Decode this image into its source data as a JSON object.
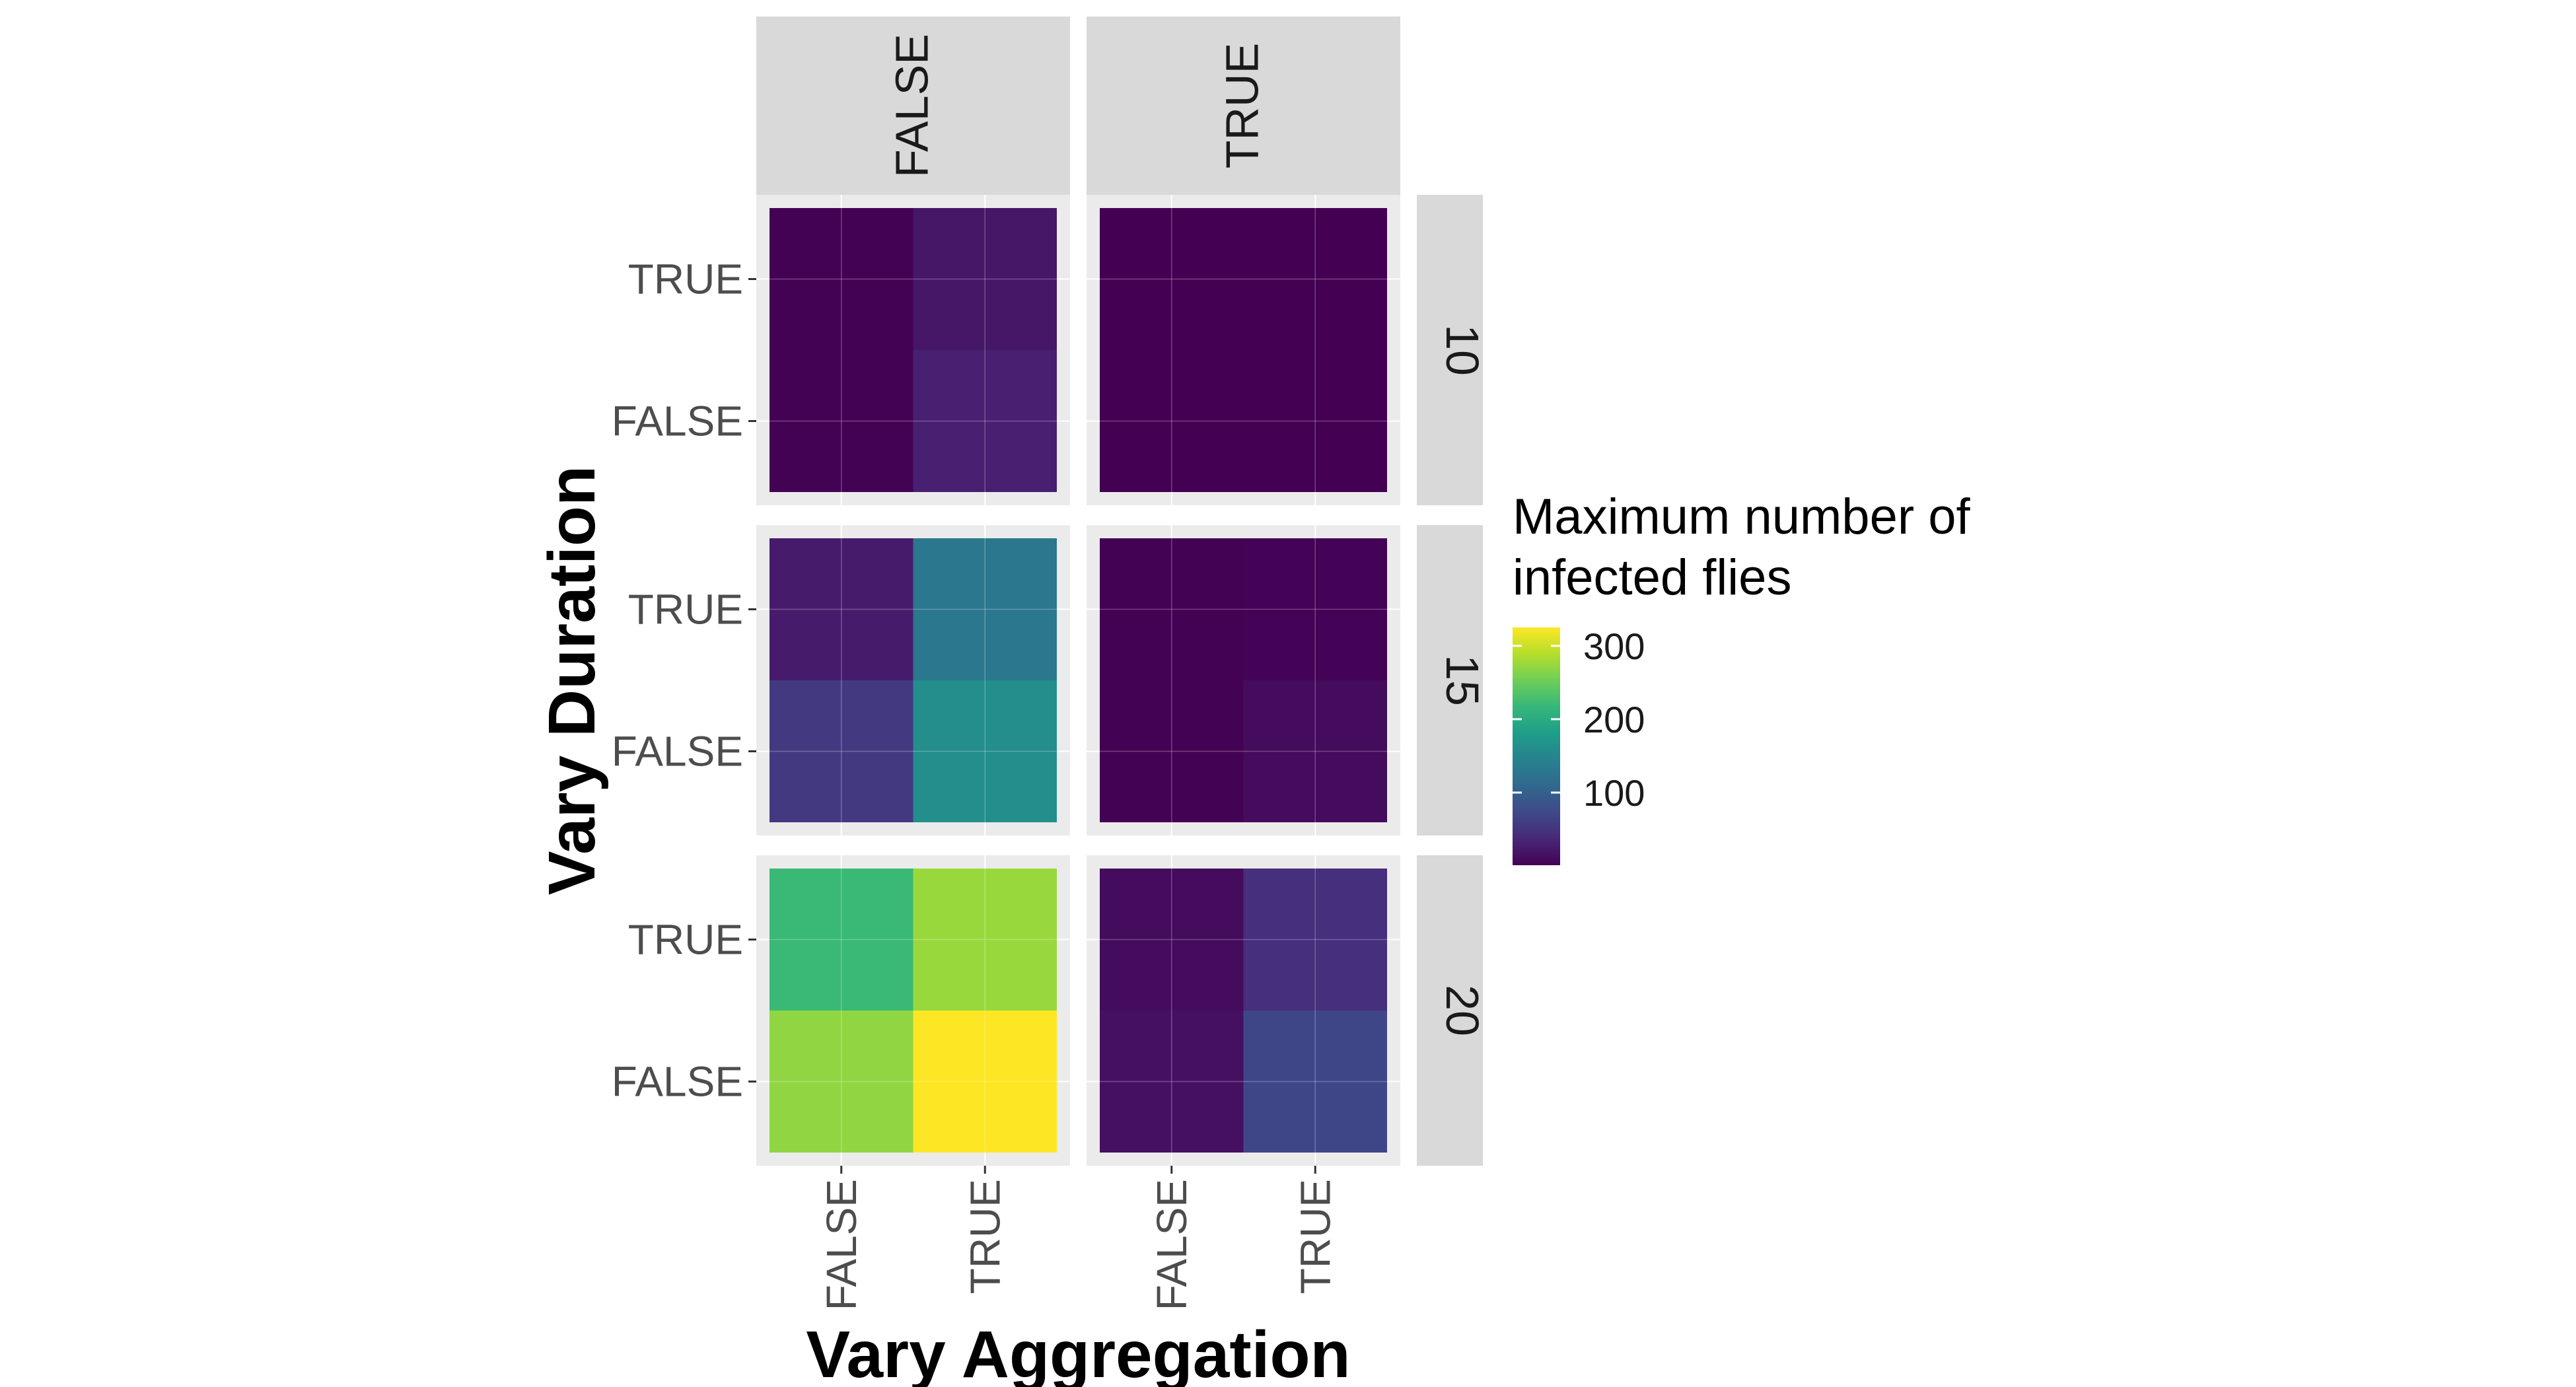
{
  "chart_data": {
    "type": "heatmap",
    "xlabel": "Vary Aggregation",
    "ylabel": "Vary Duration",
    "x_categories": [
      "FALSE",
      "TRUE"
    ],
    "y_categories": [
      "FALSE",
      "TRUE"
    ],
    "facet_cols": [
      "FALSE",
      "TRUE"
    ],
    "facet_rows": [
      "10",
      "15",
      "20"
    ],
    "legend": {
      "title_line1": "Maximum number of",
      "title_line2": " infected flies",
      "ticks": [
        100,
        200,
        300
      ],
      "tick_labels": [
        "100",
        "200",
        "300"
      ],
      "min": 1,
      "max": 325,
      "placement": "right"
    },
    "cells": [
      {
        "facet_row": "10",
        "facet_col": "FALSE",
        "x": "FALSE",
        "y": "TRUE",
        "value": 2
      },
      {
        "facet_row": "10",
        "facet_col": "FALSE",
        "x": "TRUE",
        "y": "TRUE",
        "value": 20
      },
      {
        "facet_row": "10",
        "facet_col": "FALSE",
        "x": "FALSE",
        "y": "FALSE",
        "value": 2
      },
      {
        "facet_row": "10",
        "facet_col": "FALSE",
        "x": "TRUE",
        "y": "FALSE",
        "value": 30
      },
      {
        "facet_row": "10",
        "facet_col": "TRUE",
        "x": "FALSE",
        "y": "TRUE",
        "value": 1
      },
      {
        "facet_row": "10",
        "facet_col": "TRUE",
        "x": "TRUE",
        "y": "TRUE",
        "value": 1
      },
      {
        "facet_row": "10",
        "facet_col": "TRUE",
        "x": "FALSE",
        "y": "FALSE",
        "value": 1
      },
      {
        "facet_row": "10",
        "facet_col": "TRUE",
        "x": "TRUE",
        "y": "FALSE",
        "value": 1
      },
      {
        "facet_row": "15",
        "facet_col": "FALSE",
        "x": "FALSE",
        "y": "TRUE",
        "value": 25
      },
      {
        "facet_row": "15",
        "facet_col": "FALSE",
        "x": "TRUE",
        "y": "TRUE",
        "value": 130
      },
      {
        "facet_row": "15",
        "facet_col": "FALSE",
        "x": "FALSE",
        "y": "FALSE",
        "value": 55
      },
      {
        "facet_row": "15",
        "facet_col": "FALSE",
        "x": "TRUE",
        "y": "FALSE",
        "value": 160
      },
      {
        "facet_row": "15",
        "facet_col": "TRUE",
        "x": "FALSE",
        "y": "TRUE",
        "value": 2
      },
      {
        "facet_row": "15",
        "facet_col": "TRUE",
        "x": "TRUE",
        "y": "TRUE",
        "value": 3
      },
      {
        "facet_row": "15",
        "facet_col": "TRUE",
        "x": "FALSE",
        "y": "FALSE",
        "value": 2
      },
      {
        "facet_row": "15",
        "facet_col": "TRUE",
        "x": "TRUE",
        "y": "FALSE",
        "value": 10
      },
      {
        "facet_row": "20",
        "facet_col": "FALSE",
        "x": "FALSE",
        "y": "TRUE",
        "value": 220
      },
      {
        "facet_row": "20",
        "facet_col": "FALSE",
        "x": "TRUE",
        "y": "TRUE",
        "value": 275
      },
      {
        "facet_row": "20",
        "facet_col": "FALSE",
        "x": "FALSE",
        "y": "FALSE",
        "value": 270
      },
      {
        "facet_row": "20",
        "facet_col": "FALSE",
        "x": "TRUE",
        "y": "FALSE",
        "value": 325
      },
      {
        "facet_row": "20",
        "facet_col": "TRUE",
        "x": "FALSE",
        "y": "TRUE",
        "value": 10
      },
      {
        "facet_row": "20",
        "facet_col": "TRUE",
        "x": "TRUE",
        "y": "TRUE",
        "value": 45
      },
      {
        "facet_row": "20",
        "facet_col": "TRUE",
        "x": "FALSE",
        "y": "FALSE",
        "value": 15
      },
      {
        "facet_row": "20",
        "facet_col": "TRUE",
        "x": "TRUE",
        "y": "FALSE",
        "value": 70
      }
    ],
    "colors": {
      "panel_bg": "#ebebeb",
      "strip_bg": "#d9d9d9",
      "grid": "#ffffff",
      "tick_text": "#4d4d4d",
      "strip_text": "#1a1a1a",
      "title_text": "#000000",
      "palette": [
        "#440154",
        "#482878",
        "#3e4989",
        "#31688e",
        "#26828e",
        "#1f9e89",
        "#35b779",
        "#6ece58",
        "#b5de2b",
        "#fde725"
      ]
    }
  }
}
